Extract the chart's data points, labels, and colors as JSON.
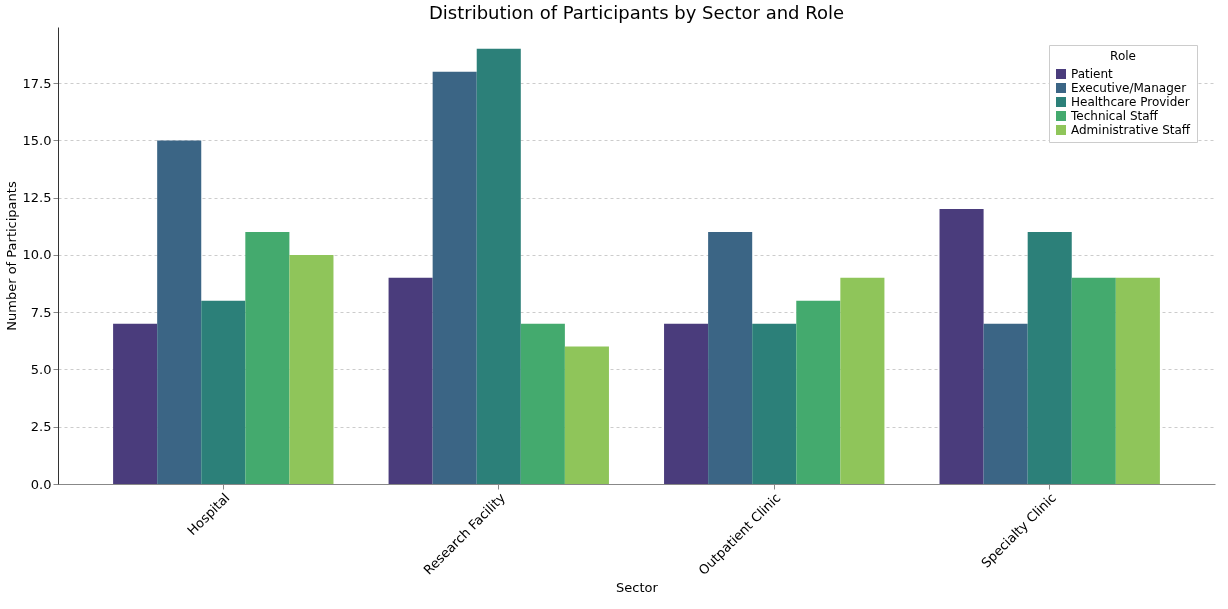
{
  "chart_data": {
    "type": "bar",
    "title": "Distribution of Participants by Sector and Role",
    "xlabel": "Sector",
    "ylabel": "Number of Participants",
    "legend_title": "Role",
    "categories": [
      "Hospital",
      "Research Facility",
      "Outpatient Clinic",
      "Specialty Clinic"
    ],
    "series": [
      {
        "name": "Patient",
        "color": "#4a3c7c",
        "values": [
          7,
          9,
          7,
          12
        ]
      },
      {
        "name": "Executive/Manager",
        "color": "#3b6585",
        "values": [
          15,
          18,
          11,
          7
        ]
      },
      {
        "name": "Healthcare Provider",
        "color": "#2c8079",
        "values": [
          8,
          19,
          7,
          11
        ]
      },
      {
        "name": "Technical Staff",
        "color": "#44aa6e",
        "values": [
          11,
          7,
          8,
          9
        ]
      },
      {
        "name": "Administrative Staff",
        "color": "#8fc55a",
        "values": [
          10,
          6,
          9,
          9
        ]
      }
    ],
    "ylim": [
      0,
      19.95
    ],
    "yticks": [
      {
        "value": 0,
        "label": "0.0"
      },
      2.5,
      {
        "value": 5,
        "label": "5.0"
      },
      7.5,
      {
        "value": 10,
        "label": "10.0"
      },
      12.5,
      {
        "value": 15,
        "label": "15.0"
      },
      17.5
    ],
    "grid": "y",
    "legend": "top right"
  }
}
